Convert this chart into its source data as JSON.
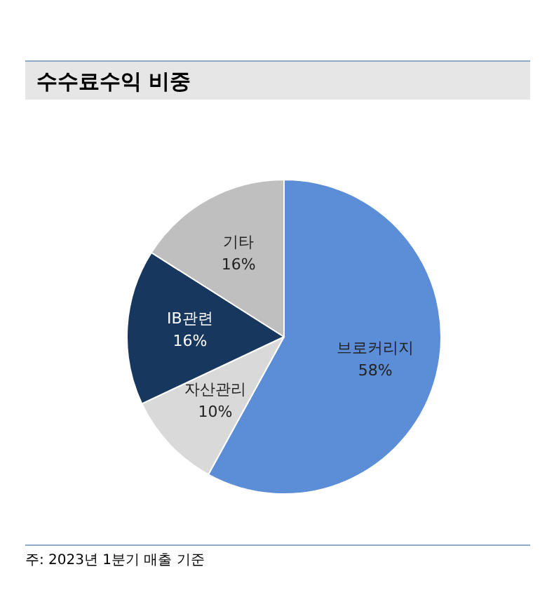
{
  "chart_data": {
    "type": "pie",
    "title": "수수료수익 비중",
    "categories": [
      "브로커리지",
      "자산관리",
      "IB관련",
      "기타"
    ],
    "values": [
      58,
      10,
      16,
      16
    ],
    "colors": [
      "#5b8ed6",
      "#d9d9d9",
      "#17375e",
      "#bfbfbf"
    ],
    "value_labels": [
      "58%",
      "10%",
      "16%",
      "16%"
    ],
    "legend": false,
    "annotations": [
      "주: 2023년 1분기 매출 기준"
    ]
  }
}
